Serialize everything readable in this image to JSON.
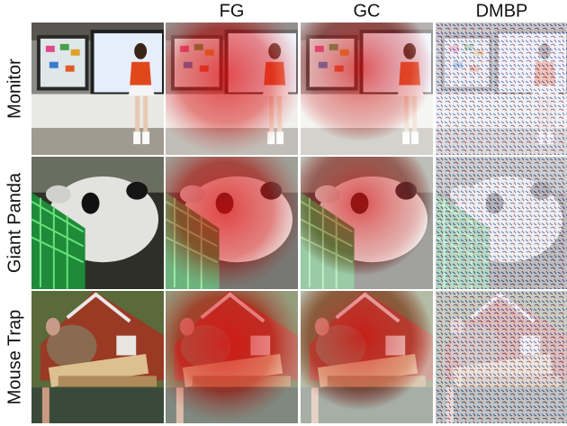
{
  "column_headers": [
    "FG",
    "GC",
    "DMBP"
  ],
  "row_labels": [
    "Monitor",
    "Giant Panda",
    "Mouse Trap"
  ]
}
